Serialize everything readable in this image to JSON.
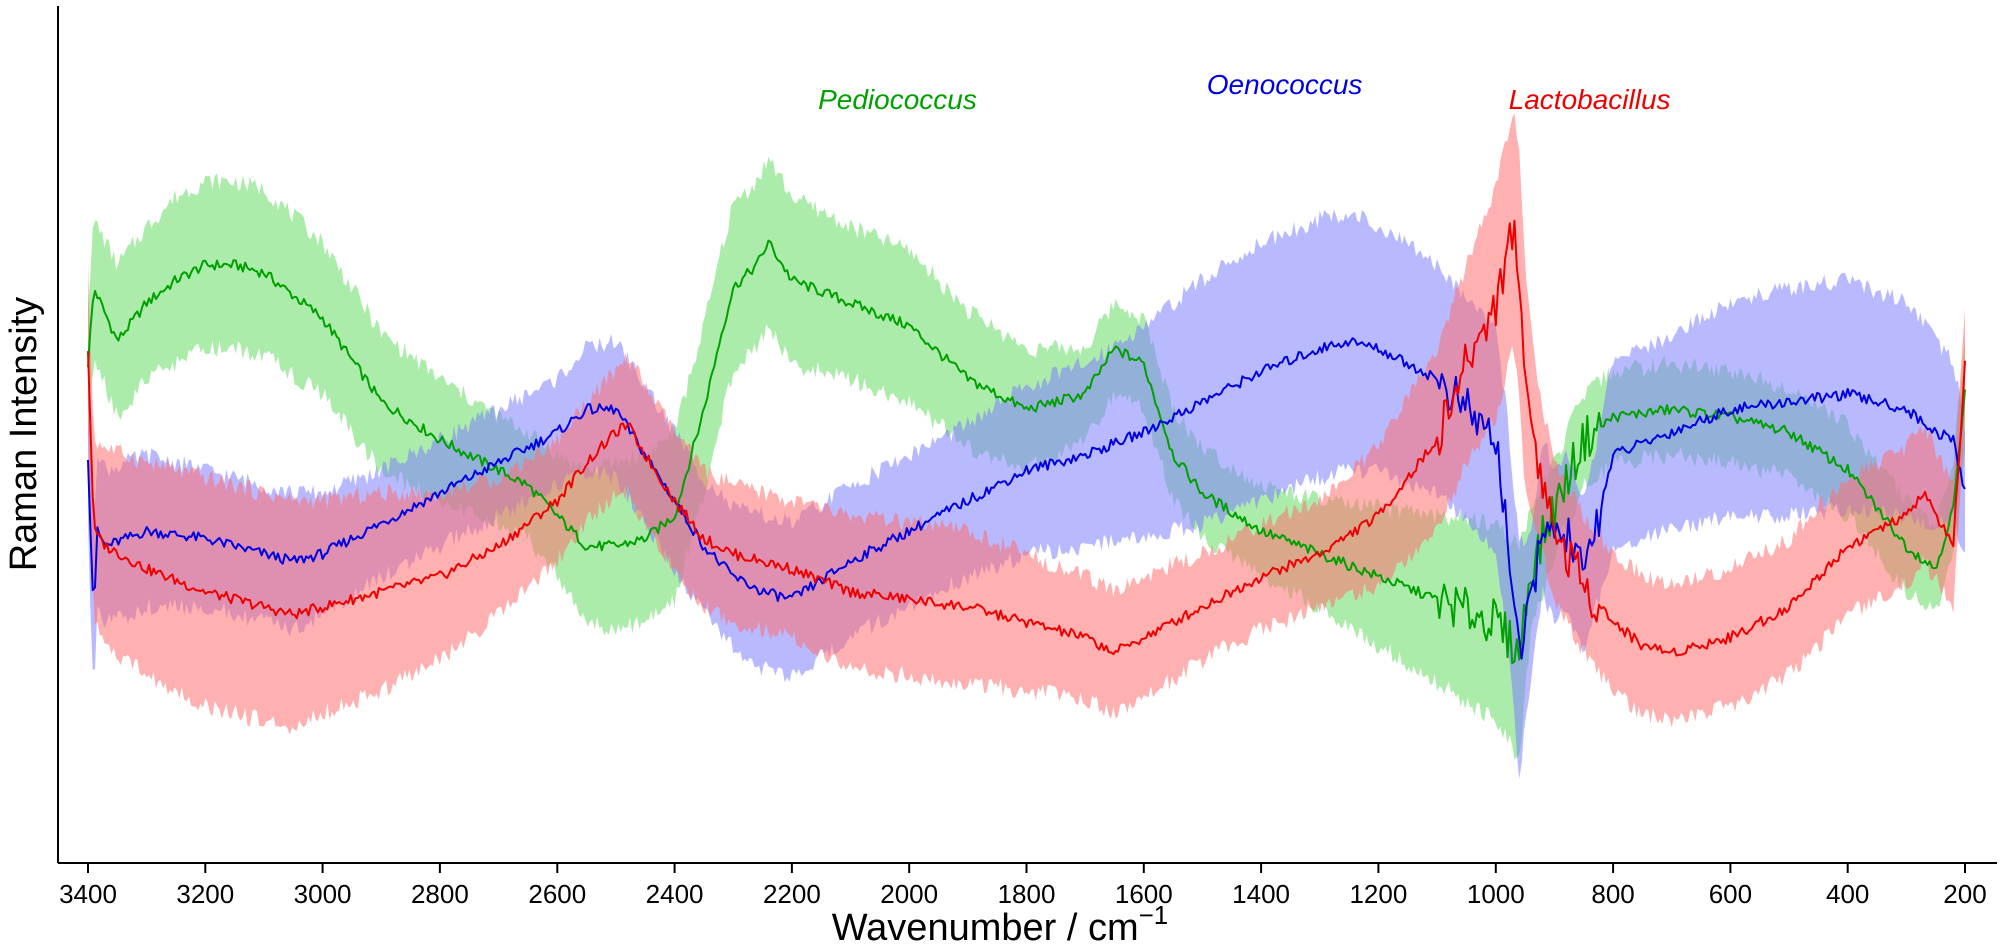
{
  "chart_data": {
    "type": "line",
    "title": "",
    "xlabel": "Wavenumber / cm",
    "xlabel_superscript": "−1",
    "ylabel": "Raman Intensity",
    "xlim": [
      3420,
      180
    ],
    "ylim": [
      0,
      1
    ],
    "x_reversed": true,
    "y_ticks_shown": false,
    "grid": false,
    "x_ticks": [
      "3400",
      "3200",
      "3000",
      "2800",
      "2600",
      "2400",
      "2200",
      "2000",
      "1800",
      "1600",
      "1400",
      "1200",
      "1000",
      "800",
      "600",
      "400",
      "200"
    ],
    "shaded_band": "mean ± standard deviation",
    "series": [
      {
        "name": "Pediococcus",
        "color": "#00a000",
        "band_color": "#66dd66",
        "label_x": 2020,
        "label_y": 0.955,
        "x": [
          3400,
          3390,
          3350,
          3300,
          3250,
          3200,
          3150,
          3100,
          3000,
          2900,
          2800,
          2700,
          2650,
          2600,
          2550,
          2500,
          2450,
          2400,
          2350,
          2320,
          2300,
          2260,
          2240,
          2200,
          2100,
          2000,
          1900,
          1800,
          1700,
          1650,
          1600,
          1550,
          1500,
          1400,
          1300,
          1200,
          1100,
          1000,
          960,
          940,
          900,
          850,
          800,
          700,
          600,
          500,
          400,
          300,
          250,
          220,
          200
        ],
        "mean": [
          0.62,
          0.72,
          0.65,
          0.7,
          0.73,
          0.75,
          0.75,
          0.74,
          0.68,
          0.57,
          0.52,
          0.48,
          0.46,
          0.42,
          0.38,
          0.38,
          0.39,
          0.42,
          0.56,
          0.66,
          0.72,
          0.75,
          0.78,
          0.73,
          0.7,
          0.67,
          0.6,
          0.56,
          0.58,
          0.64,
          0.62,
          0.5,
          0.45,
          0.4,
          0.37,
          0.34,
          0.31,
          0.28,
          0.24,
          0.35,
          0.43,
          0.52,
          0.55,
          0.56,
          0.55,
          0.53,
          0.48,
          0.38,
          0.35,
          0.43,
          0.58
        ],
        "sd": [
          0.08,
          0.09,
          0.1,
          0.1,
          0.11,
          0.11,
          0.11,
          0.11,
          0.1,
          0.09,
          0.08,
          0.07,
          0.07,
          0.08,
          0.1,
          0.11,
          0.11,
          0.11,
          0.11,
          0.11,
          0.11,
          0.11,
          0.11,
          0.11,
          0.1,
          0.1,
          0.09,
          0.08,
          0.06,
          0.06,
          0.06,
          0.06,
          0.06,
          0.06,
          0.07,
          0.09,
          0.11,
          0.13,
          0.14,
          0.08,
          0.06,
          0.06,
          0.06,
          0.06,
          0.06,
          0.06,
          0.06,
          0.06,
          0.06,
          0.06,
          0.08
        ]
      },
      {
        "name": "Oenococcus",
        "color": "#0000e0",
        "band_color": "#8080ff",
        "label_x": 1360,
        "label_y": 0.975,
        "x": [
          3400,
          3390,
          3385,
          3370,
          3300,
          3200,
          3100,
          3050,
          3000,
          2900,
          2800,
          2700,
          2600,
          2550,
          2500,
          2450,
          2400,
          2350,
          2300,
          2250,
          2200,
          2100,
          2000,
          1900,
          1800,
          1700,
          1600,
          1500,
          1400,
          1300,
          1250,
          1200,
          1100,
          1050,
          1000,
          980,
          960,
          940,
          920,
          900,
          880,
          850,
          800,
          700,
          600,
          500,
          400,
          300,
          250,
          220,
          200
        ],
        "mean": [
          0.5,
          0.28,
          0.4,
          0.38,
          0.4,
          0.39,
          0.37,
          0.36,
          0.37,
          0.41,
          0.45,
          0.49,
          0.53,
          0.56,
          0.56,
          0.5,
          0.44,
          0.38,
          0.34,
          0.32,
          0.31,
          0.36,
          0.4,
          0.44,
          0.48,
          0.5,
          0.53,
          0.57,
          0.61,
          0.64,
          0.65,
          0.64,
          0.6,
          0.56,
          0.52,
          0.4,
          0.23,
          0.3,
          0.42,
          0.38,
          0.4,
          0.34,
          0.5,
          0.53,
          0.56,
          0.57,
          0.58,
          0.56,
          0.53,
          0.52,
          0.45
        ],
        "sd": [
          0.09,
          0.12,
          0.11,
          0.1,
          0.1,
          0.09,
          0.09,
          0.09,
          0.08,
          0.07,
          0.07,
          0.07,
          0.07,
          0.08,
          0.09,
          0.09,
          0.09,
          0.09,
          0.09,
          0.1,
          0.1,
          0.1,
          0.1,
          0.1,
          0.11,
          0.12,
          0.14,
          0.16,
          0.17,
          0.17,
          0.17,
          0.16,
          0.15,
          0.15,
          0.15,
          0.15,
          0.15,
          0.1,
          0.1,
          0.1,
          0.1,
          0.1,
          0.12,
          0.13,
          0.14,
          0.15,
          0.15,
          0.14,
          0.12,
          0.1,
          0.09
        ]
      },
      {
        "name": "Lactobacillus",
        "color": "#ee0000",
        "band_color": "#ff7070",
        "label_x": 840,
        "label_y": 0.955,
        "x": [
          3400,
          3390,
          3370,
          3300,
          3200,
          3100,
          3050,
          3000,
          2900,
          2800,
          2700,
          2600,
          2550,
          2500,
          2480,
          2450,
          2400,
          2350,
          2300,
          2250,
          2200,
          2100,
          2000,
          1900,
          1800,
          1700,
          1650,
          1600,
          1500,
          1400,
          1300,
          1200,
          1100,
          1050,
          1000,
          970,
          960,
          950,
          930,
          900,
          850,
          800,
          750,
          700,
          600,
          500,
          400,
          300,
          270,
          220,
          200
        ],
        "mean": [
          0.64,
          0.4,
          0.38,
          0.35,
          0.32,
          0.3,
          0.29,
          0.3,
          0.32,
          0.34,
          0.38,
          0.44,
          0.49,
          0.53,
          0.54,
          0.5,
          0.44,
          0.39,
          0.37,
          0.36,
          0.35,
          0.32,
          0.31,
          0.3,
          0.28,
          0.26,
          0.24,
          0.26,
          0.3,
          0.34,
          0.37,
          0.42,
          0.52,
          0.62,
          0.7,
          0.8,
          0.74,
          0.6,
          0.5,
          0.4,
          0.33,
          0.28,
          0.25,
          0.24,
          0.26,
          0.3,
          0.38,
          0.42,
          0.45,
          0.38,
          0.62
        ],
        "sd": [
          0.1,
          0.12,
          0.13,
          0.14,
          0.15,
          0.15,
          0.15,
          0.14,
          0.13,
          0.11,
          0.09,
          0.08,
          0.08,
          0.08,
          0.09,
          0.09,
          0.09,
          0.09,
          0.09,
          0.09,
          0.09,
          0.1,
          0.1,
          0.1,
          0.09,
          0.08,
          0.08,
          0.08,
          0.07,
          0.07,
          0.07,
          0.09,
          0.12,
          0.13,
          0.15,
          0.16,
          0.16,
          0.14,
          0.1,
          0.09,
          0.09,
          0.09,
          0.09,
          0.09,
          0.09,
          0.09,
          0.09,
          0.09,
          0.09,
          0.08,
          0.08
        ]
      }
    ]
  }
}
